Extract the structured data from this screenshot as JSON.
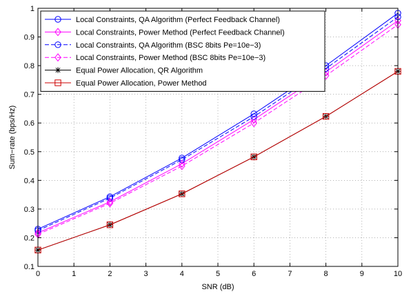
{
  "chart_data": {
    "type": "line",
    "xlabel": "SNR (dB)",
    "ylabel": "Sum−rate (bps/Hz)",
    "xlim": [
      0,
      10
    ],
    "ylim": [
      0.1,
      1
    ],
    "xticks": [
      0,
      1,
      2,
      3,
      4,
      5,
      6,
      7,
      8,
      9,
      10
    ],
    "yticks": [
      0.1,
      0.2,
      0.3,
      0.4,
      0.5,
      0.6,
      0.7,
      0.8,
      0.9,
      1
    ],
    "grid": true,
    "legend_position": "top-left",
    "x": [
      0,
      2,
      4,
      6,
      8,
      10
    ],
    "series": [
      {
        "name": "Local Constraints, QA Algorithm (Perfect Feedback Channel)",
        "values": [
          0.23,
          0.343,
          0.478,
          0.632,
          0.8,
          0.983
        ],
        "color": "#0000ff",
        "dash": "solid",
        "marker": "circle"
      },
      {
        "name": "Local Constraints, Power Method (Perfect Feedback Channel)",
        "values": [
          0.217,
          0.325,
          0.458,
          0.612,
          0.778,
          0.957
        ],
        "color": "#ff00ff",
        "dash": "solid",
        "marker": "diamond"
      },
      {
        "name": "Local Constraints, QA Algorithm (BSC 8bits Pe=10e−3)",
        "values": [
          0.225,
          0.338,
          0.472,
          0.622,
          0.79,
          0.97
        ],
        "color": "#0000ff",
        "dash": "dashed",
        "marker": "circle"
      },
      {
        "name": "Local Constraints, Power Method (BSC 8bits Pe=10e−3)",
        "values": [
          0.212,
          0.32,
          0.45,
          0.6,
          0.765,
          0.943
        ],
        "color": "#ff00ff",
        "dash": "dashed",
        "marker": "diamond"
      },
      {
        "name": "Equal Power Allocation, QR Algorithm",
        "values": [
          0.157,
          0.245,
          0.353,
          0.482,
          0.623,
          0.78
        ],
        "color": "#000000",
        "dash": "solid",
        "marker": "asterisk"
      },
      {
        "name": "Equal Power Allocation, Power Method",
        "values": [
          0.157,
          0.245,
          0.353,
          0.482,
          0.623,
          0.78
        ],
        "color": "#cc0000",
        "dash": "solid",
        "marker": "square"
      }
    ]
  }
}
